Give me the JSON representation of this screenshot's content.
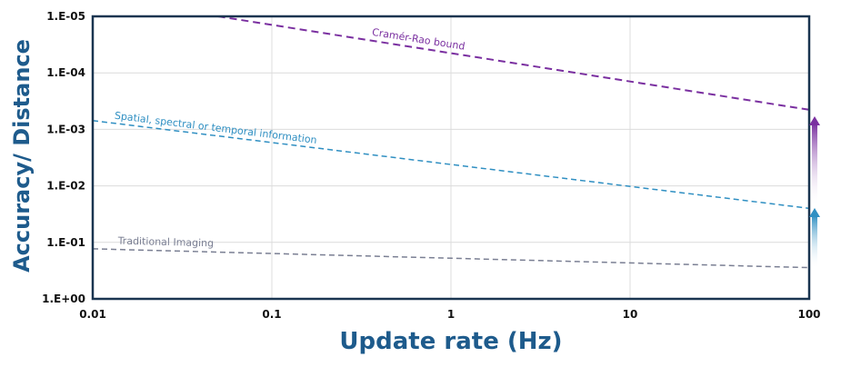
{
  "chart_data": {
    "type": "line",
    "xlabel": "Update rate (Hz)",
    "ylabel": "Accuracy/ Distance",
    "x_scale": "log",
    "y_scale": "log",
    "y_inverted": true,
    "xlim": [
      0.01,
      100
    ],
    "ylim": [
      1e-05,
      1
    ],
    "x_ticks": [
      "0.01",
      "0.1",
      "1",
      "10",
      "100"
    ],
    "y_ticks": [
      "1.E-05",
      "1.E-04",
      "1.E-03",
      "1.E-02",
      "1.E-01",
      "1.E+00"
    ],
    "grid": true,
    "series": [
      {
        "name": "Cramér-Rao bound",
        "color": "#7a2fa0",
        "style": "dashed",
        "x": [
          0.05,
          100
        ],
        "y": [
          1e-05,
          0.00045
        ]
      },
      {
        "name": "Spatial, spectral or temporal information",
        "color": "#2f8fc2",
        "style": "dashed",
        "x": [
          0.01,
          100
        ],
        "y": [
          0.0007,
          0.025
        ]
      },
      {
        "name": "Traditional Imaging",
        "color": "#7a7f93",
        "style": "dashed",
        "x": [
          0.01,
          100
        ],
        "y": [
          0.13,
          0.28
        ]
      }
    ],
    "arrows": [
      {
        "direction": "up",
        "color": "#2f8fc2"
      },
      {
        "direction": "up",
        "color": "#7a2fa0"
      }
    ]
  }
}
